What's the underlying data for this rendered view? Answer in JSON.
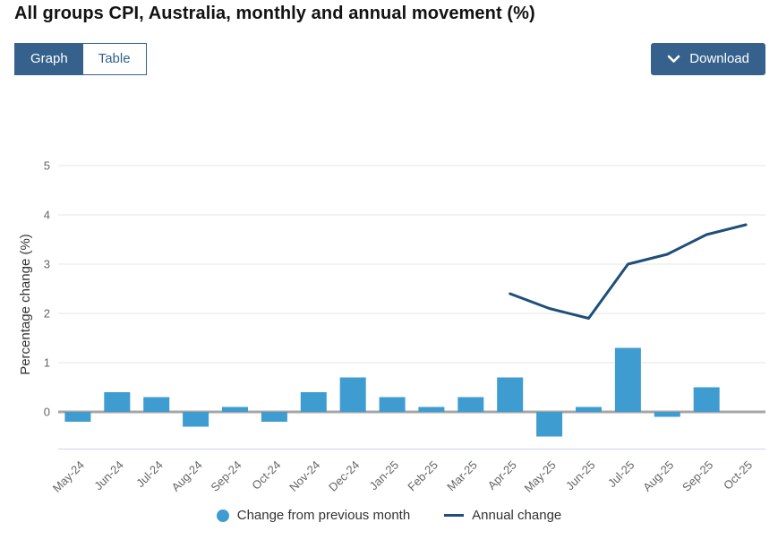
{
  "title": "All groups CPI, Australia, monthly and annual movement (%)",
  "controls": {
    "graph_label": "Graph",
    "table_label": "Table",
    "download_label": "Download"
  },
  "legend": {
    "bar_series": "Change from previous month",
    "line_series": "Annual change"
  },
  "colors": {
    "accent_blue": "#35618c",
    "bar_blue": "#3e9cd1",
    "line_navy": "#1f4e79",
    "grid": "#e6e6e6",
    "zero_line": "#a6a6a6",
    "axis_line": "#ccd6eb",
    "tick_text": "#666666",
    "axis_title_text": "#333333"
  },
  "chart_data": {
    "type": "bar",
    "combo": [
      "bar",
      "line"
    ],
    "title": "All groups CPI, Australia, monthly and annual movement (%)",
    "xlabel": "",
    "ylabel": "Percentage change (%)",
    "categories": [
      "May-24",
      "Jun-24",
      "Jul-24",
      "Aug-24",
      "Sep-24",
      "Oct-24",
      "Nov-24",
      "Dec-24",
      "Jan-25",
      "Feb-25",
      "Mar-25",
      "Apr-25",
      "May-25",
      "Jun-25",
      "Jul-25",
      "Aug-25",
      "Sep-25",
      "Oct-25"
    ],
    "series": [
      {
        "name": "Change from previous month",
        "type": "bar",
        "color": "#3e9cd1",
        "values": [
          -0.2,
          0.4,
          0.3,
          -0.3,
          0.1,
          -0.2,
          0.4,
          0.7,
          0.3,
          0.1,
          0.3,
          0.7,
          -0.5,
          0.1,
          1.3,
          -0.1,
          0.5,
          null
        ]
      },
      {
        "name": "Annual change",
        "type": "line",
        "color": "#1f4e79",
        "values": [
          null,
          null,
          null,
          null,
          null,
          null,
          null,
          null,
          null,
          null,
          null,
          2.4,
          2.1,
          1.9,
          3.0,
          3.2,
          3.6,
          3.8
        ]
      }
    ],
    "yticks": [
      0,
      1,
      2,
      3,
      4,
      5
    ],
    "ylim": [
      -0.8,
      5.5
    ],
    "grid": true,
    "legend_position": "bottom"
  }
}
